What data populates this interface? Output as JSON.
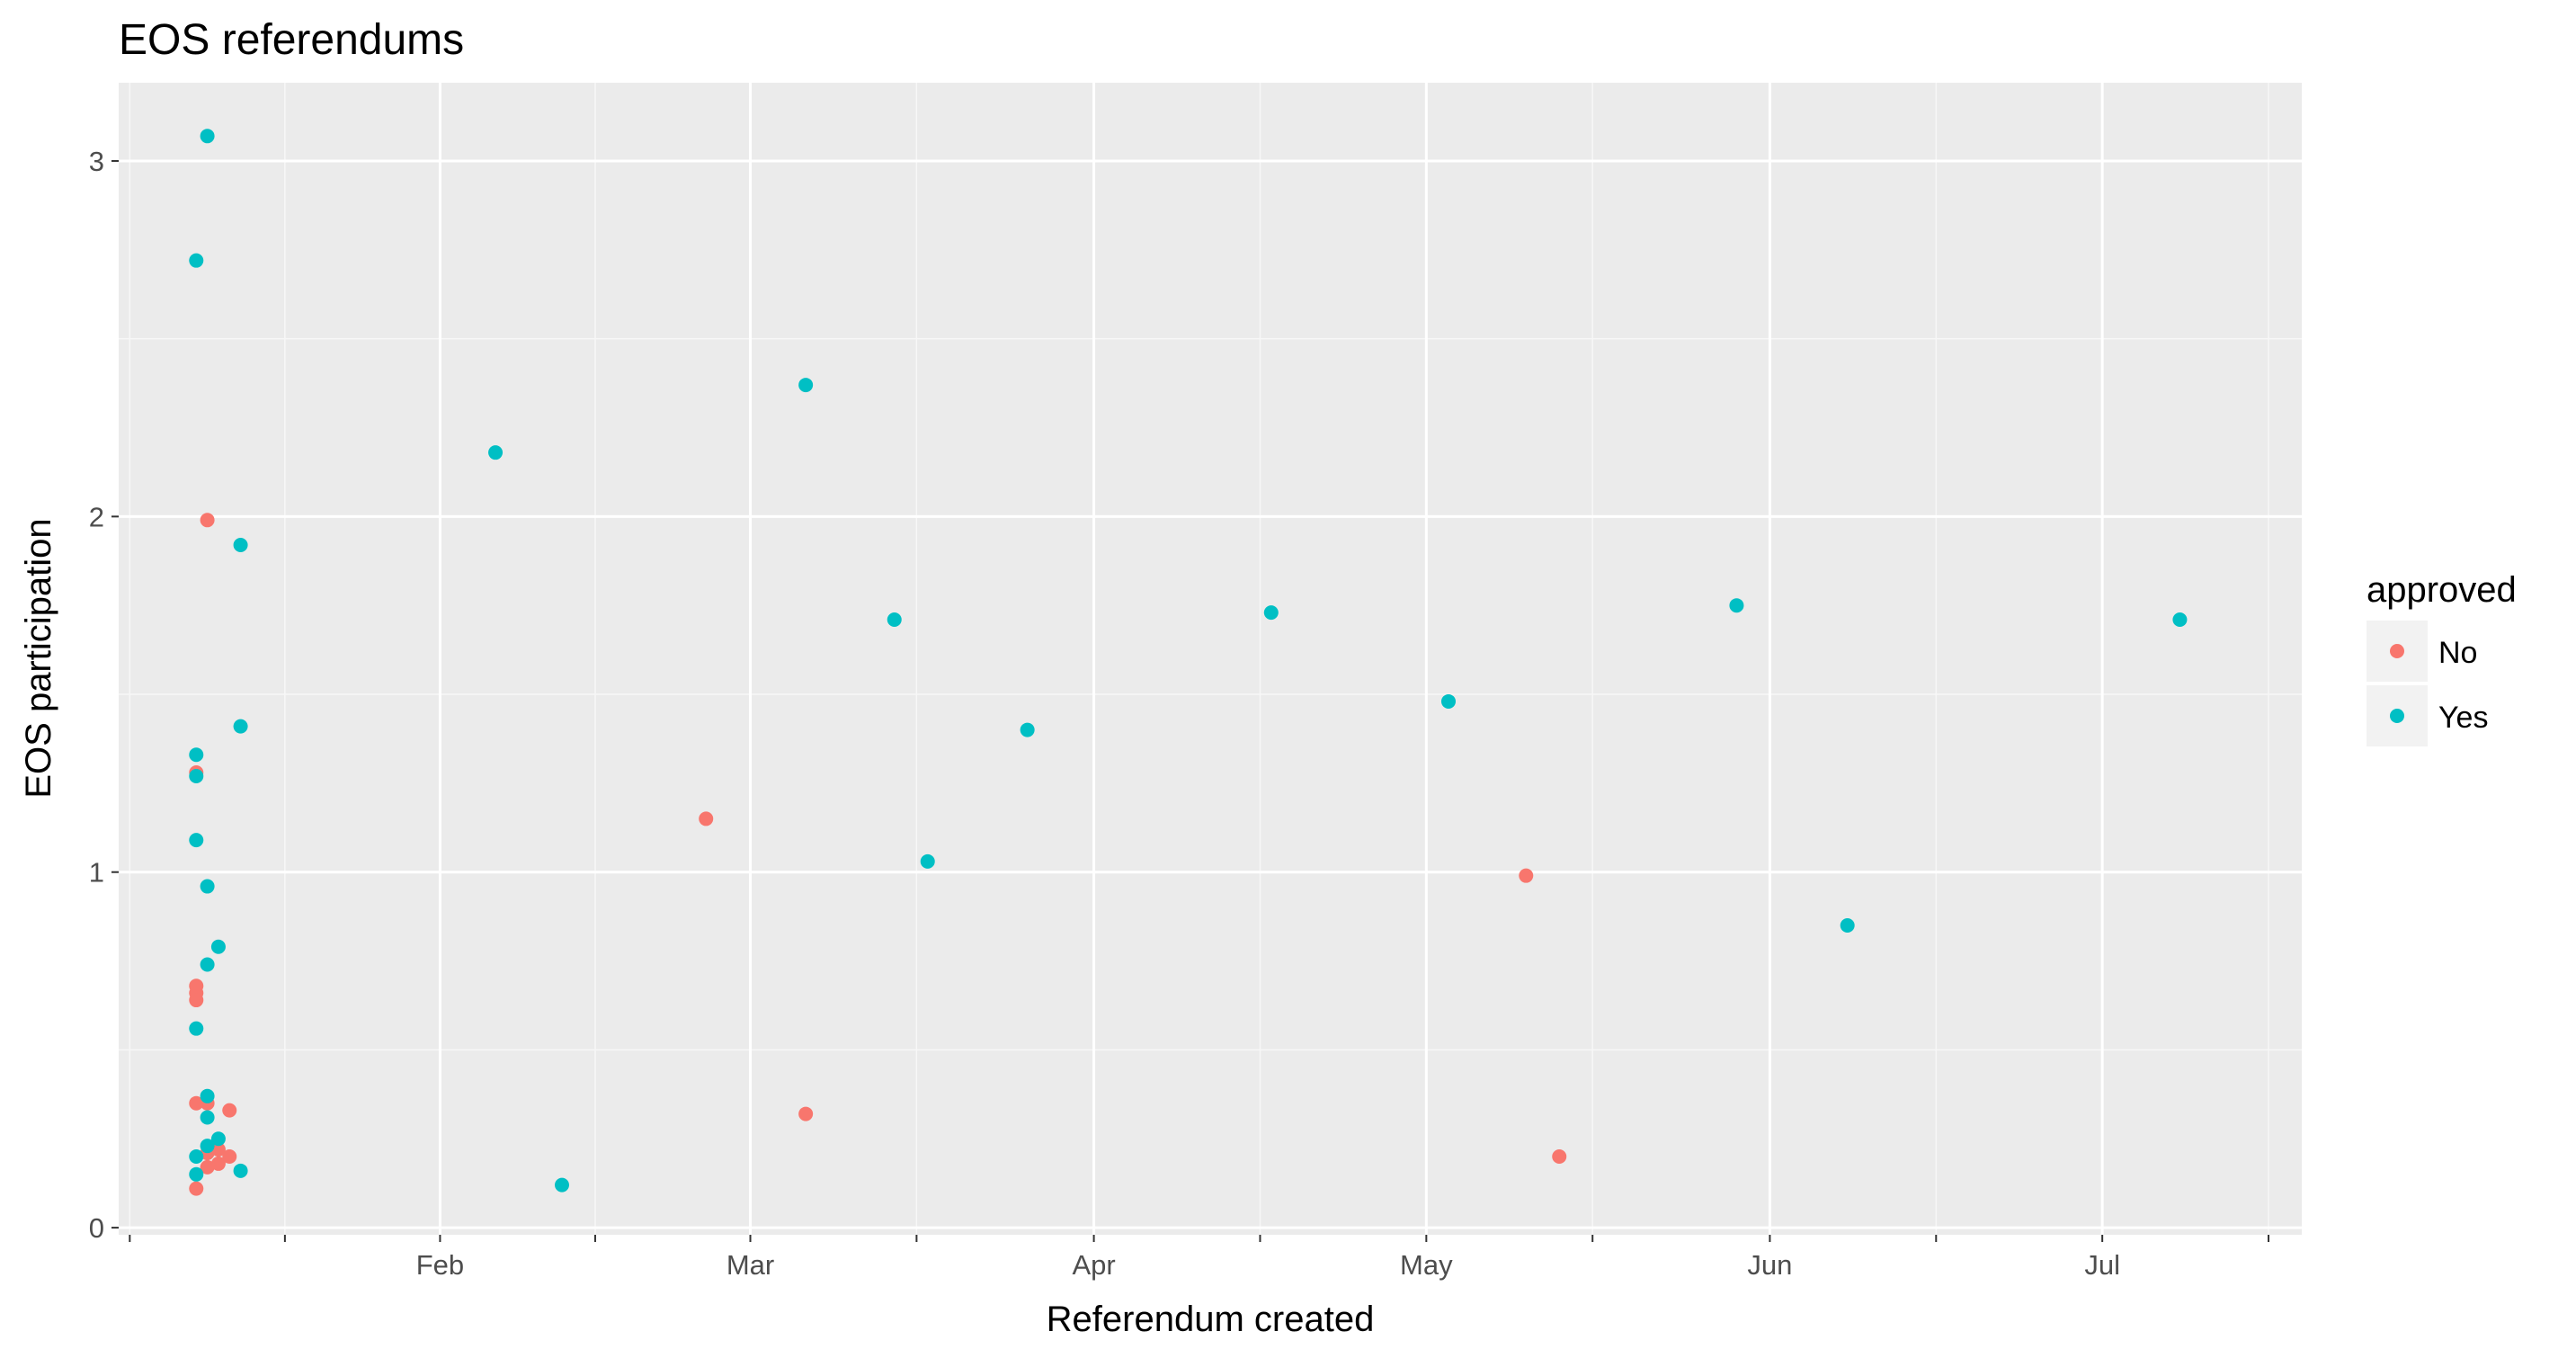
{
  "chart_data": {
    "type": "scatter",
    "title": "EOS referendums",
    "xlabel": "Referendum created",
    "ylabel": "EOS participation",
    "x_type": "date",
    "xlim": [
      "2019-01-03",
      "2019-07-19"
    ],
    "ylim": [
      -0.02,
      3.22
    ],
    "x_ticks": [
      {
        "date": "2019-02-01",
        "label": "Feb"
      },
      {
        "date": "2019-03-01",
        "label": "Mar"
      },
      {
        "date": "2019-04-01",
        "label": "Apr"
      },
      {
        "date": "2019-05-01",
        "label": "May"
      },
      {
        "date": "2019-06-01",
        "label": "Jun"
      },
      {
        "date": "2019-07-01",
        "label": "Jul"
      }
    ],
    "x_minor_gridlines": [
      "2019-01-04",
      "2019-01-18",
      "2019-02-15",
      "2019-03-16",
      "2019-04-16",
      "2019-05-16",
      "2019-06-16",
      "2019-07-16"
    ],
    "y_ticks": [
      0,
      1,
      2,
      3
    ],
    "grid": true,
    "legend": {
      "title": "approved",
      "position": "right"
    },
    "series": [
      {
        "name": "No",
        "color": "#F8766D",
        "points": [
          {
            "x": "2019-01-10",
            "y": 0.11
          },
          {
            "x": "2019-01-10",
            "y": 0.35
          },
          {
            "x": "2019-01-10",
            "y": 0.64
          },
          {
            "x": "2019-01-10",
            "y": 0.66
          },
          {
            "x": "2019-01-10",
            "y": 0.68
          },
          {
            "x": "2019-01-10",
            "y": 1.28
          },
          {
            "x": "2019-01-11",
            "y": 1.99
          },
          {
            "x": "2019-01-11",
            "y": 0.35
          },
          {
            "x": "2019-01-11",
            "y": 0.17
          },
          {
            "x": "2019-01-11",
            "y": 0.21
          },
          {
            "x": "2019-01-12",
            "y": 0.18
          },
          {
            "x": "2019-01-12",
            "y": 0.22
          },
          {
            "x": "2019-01-13",
            "y": 0.33
          },
          {
            "x": "2019-01-13",
            "y": 0.2
          },
          {
            "x": "2019-02-25",
            "y": 1.15
          },
          {
            "x": "2019-03-06",
            "y": 0.32
          },
          {
            "x": "2019-05-10",
            "y": 0.99
          },
          {
            "x": "2019-05-13",
            "y": 0.2
          }
        ]
      },
      {
        "name": "Yes",
        "color": "#00BFC4",
        "points": [
          {
            "x": "2019-01-11",
            "y": 3.07
          },
          {
            "x": "2019-01-10",
            "y": 2.72
          },
          {
            "x": "2019-01-14",
            "y": 1.92
          },
          {
            "x": "2019-01-14",
            "y": 1.41
          },
          {
            "x": "2019-01-10",
            "y": 1.33
          },
          {
            "x": "2019-01-10",
            "y": 1.27
          },
          {
            "x": "2019-01-10",
            "y": 1.09
          },
          {
            "x": "2019-01-11",
            "y": 0.96
          },
          {
            "x": "2019-01-12",
            "y": 0.79
          },
          {
            "x": "2019-01-11",
            "y": 0.74
          },
          {
            "x": "2019-01-10",
            "y": 0.56
          },
          {
            "x": "2019-01-11",
            "y": 0.37
          },
          {
            "x": "2019-01-11",
            "y": 0.31
          },
          {
            "x": "2019-01-12",
            "y": 0.25
          },
          {
            "x": "2019-01-11",
            "y": 0.23
          },
          {
            "x": "2019-01-10",
            "y": 0.2
          },
          {
            "x": "2019-01-10",
            "y": 0.15
          },
          {
            "x": "2019-01-14",
            "y": 0.16
          },
          {
            "x": "2019-02-06",
            "y": 2.18
          },
          {
            "x": "2019-02-12",
            "y": 0.12
          },
          {
            "x": "2019-03-06",
            "y": 2.37
          },
          {
            "x": "2019-03-14",
            "y": 1.71
          },
          {
            "x": "2019-03-17",
            "y": 1.03
          },
          {
            "x": "2019-03-26",
            "y": 1.4
          },
          {
            "x": "2019-04-17",
            "y": 1.73
          },
          {
            "x": "2019-05-03",
            "y": 1.48
          },
          {
            "x": "2019-05-29",
            "y": 1.75
          },
          {
            "x": "2019-06-08",
            "y": 0.85
          },
          {
            "x": "2019-07-08",
            "y": 1.71
          }
        ]
      }
    ]
  }
}
